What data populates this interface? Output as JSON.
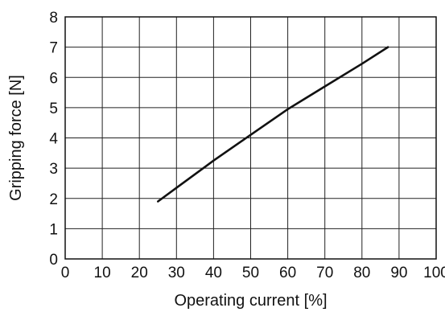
{
  "chart_data": {
    "type": "line",
    "title": "",
    "xlabel": "Operating current [%]",
    "ylabel": "Gripping force [N]",
    "xlim": [
      0,
      100
    ],
    "ylim": [
      0,
      8
    ],
    "x_ticks": [
      0,
      10,
      20,
      30,
      40,
      50,
      60,
      70,
      80,
      90,
      100
    ],
    "y_ticks": [
      0,
      1,
      2,
      3,
      4,
      5,
      6,
      7,
      8
    ],
    "grid": true,
    "legend": "none",
    "series": [
      {
        "x": [
          25,
          30,
          40,
          50,
          60,
          70,
          80,
          87
        ],
        "y": [
          1.9,
          2.35,
          3.25,
          4.1,
          4.95,
          5.7,
          6.45,
          7.0
        ],
        "color": "#111111"
      }
    ]
  }
}
